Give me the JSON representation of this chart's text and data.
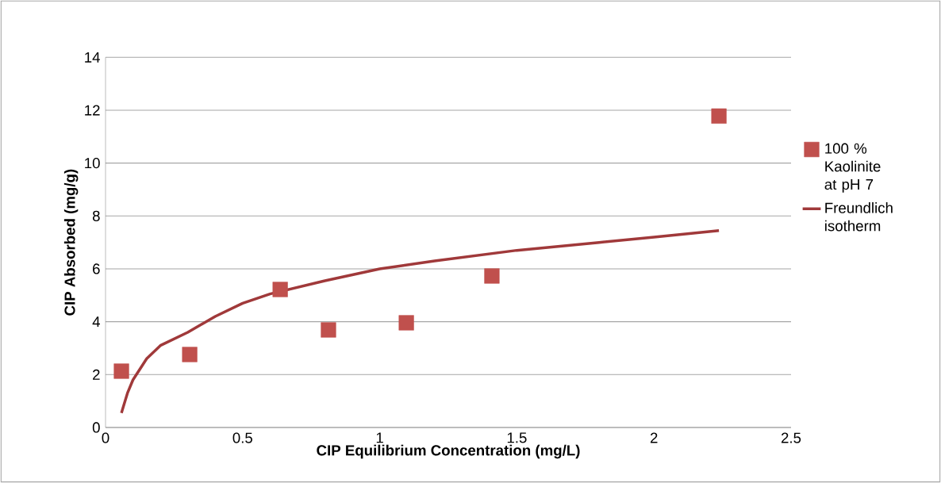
{
  "chart_data": {
    "type": "scatter",
    "xlabel": "CIP Equilibrium Concentration (mg/L)",
    "ylabel": "CIP Absorbed (mg/g)",
    "xlim": [
      0,
      2.5
    ],
    "xticks": [
      0,
      0.5,
      1,
      1.5,
      2,
      2.5
    ],
    "ylim": [
      0,
      14
    ],
    "yticks": [
      0,
      2,
      4,
      6,
      8,
      10,
      12,
      14
    ],
    "grid": "y",
    "legend": "right",
    "series": [
      {
        "name": "100 % Kaolinite at pH 7",
        "marker": "square",
        "color": "#c0504d",
        "x": [
          0.058,
          0.307,
          0.637,
          0.813,
          1.097,
          1.409,
          2.237
        ],
        "values": [
          2.13,
          2.76,
          5.22,
          3.69,
          3.96,
          5.73,
          11.78
        ]
      },
      {
        "name": "Freundlich isotherm",
        "type": "line",
        "marker": "none",
        "color": "#a0393a",
        "x": [
          0.058,
          0.08,
          0.1,
          0.15,
          0.2,
          0.3,
          0.4,
          0.5,
          0.6,
          0.8,
          1.0,
          1.2,
          1.5,
          1.8,
          2.0,
          2.237
        ],
        "values": [
          0.55,
          1.3,
          1.8,
          2.6,
          3.1,
          3.6,
          4.2,
          4.7,
          5.05,
          5.55,
          6.0,
          6.3,
          6.7,
          7.0,
          7.2,
          7.45
        ]
      }
    ]
  }
}
